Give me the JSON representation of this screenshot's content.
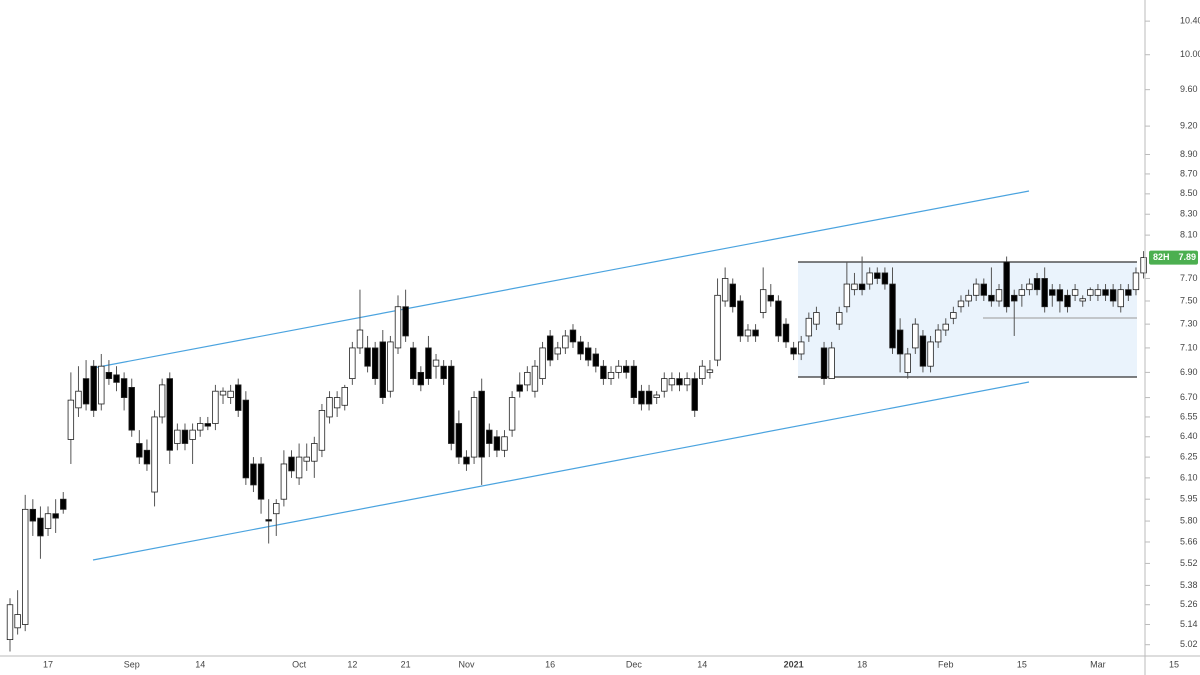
{
  "chart_data": {
    "type": "candlestick",
    "log_scale": true,
    "grid": false,
    "up_color": "#ffffff",
    "down_color": "#000000",
    "wick_color": "#555555",
    "categories": [
      null,
      null,
      null,
      null,
      null,
      "17",
      null,
      null,
      null,
      null,
      null,
      null,
      null,
      null,
      null,
      null,
      "Sep",
      null,
      null,
      null,
      null,
      null,
      null,
      null,
      null,
      "14",
      null,
      null,
      null,
      null,
      null,
      null,
      null,
      null,
      null,
      null,
      null,
      null,
      "Oct",
      null,
      null,
      null,
      null,
      null,
      null,
      "12",
      null,
      null,
      null,
      null,
      null,
      null,
      "21",
      null,
      null,
      null,
      null,
      null,
      null,
      null,
      "Nov",
      null,
      null,
      null,
      null,
      null,
      null,
      null,
      null,
      null,
      null,
      "16",
      null,
      null,
      null,
      null,
      null,
      null,
      null,
      null,
      null,
      null,
      "Dec",
      null,
      null,
      null,
      null,
      null,
      null,
      null,
      null,
      "14",
      null,
      null,
      null,
      null,
      null,
      null,
      null,
      null,
      null,
      null,
      null,
      "2021",
      null,
      null,
      null,
      null,
      null,
      null,
      null,
      null,
      "18",
      null,
      null,
      null,
      null,
      null,
      null,
      null,
      null,
      null,
      null,
      "Feb",
      null,
      null,
      null,
      null,
      null,
      null,
      null,
      null,
      null,
      "15",
      null,
      null,
      null,
      null,
      null,
      null,
      null,
      null,
      null,
      "Mar",
      null,
      null,
      null,
      null,
      null,
      null,
      null,
      null,
      null,
      "15"
    ],
    "open": [
      5.05,
      5.12,
      5.14,
      5.88,
      5.82,
      5.75,
      5.85,
      5.95,
      6.38,
      6.62,
      6.85,
      6.95,
      6.65,
      6.9,
      6.88,
      6.85,
      6.78,
      6.35,
      6.3,
      6.0,
      6.55,
      6.85,
      6.35,
      6.45,
      6.38,
      6.45,
      6.5,
      6.5,
      6.72,
      6.7,
      6.8,
      6.68,
      6.2,
      6.2,
      5.81,
      5.85,
      5.95,
      6.25,
      6.1,
      6.22,
      6.22,
      6.3,
      6.55,
      6.62,
      6.64,
      6.85,
      7.1,
      7.1,
      7.1,
      7.15,
      6.75,
      7.1,
      7.45,
      7.1,
      6.9,
      7.1,
      6.95,
      6.95,
      6.95,
      6.5,
      6.25,
      6.25,
      6.75,
      6.45,
      6.4,
      6.3,
      6.45,
      6.8,
      6.8,
      6.75,
      6.85,
      7.2,
      7.05,
      7.1,
      7.25,
      7.15,
      7.1,
      7.05,
      6.95,
      6.85,
      6.9,
      6.95,
      6.95,
      6.75,
      6.75,
      6.7,
      6.75,
      6.8,
      6.85,
      6.8,
      6.85,
      6.85,
      6.9,
      7.0,
      7.5,
      7.65,
      7.5,
      7.2,
      7.25,
      7.4,
      7.55,
      7.5,
      7.3,
      7.1,
      7.05,
      7.2,
      7.3,
      7.1,
      6.85,
      7.3,
      7.45,
      7.6,
      7.65,
      7.65,
      7.75,
      7.75,
      7.65,
      7.25,
      6.9,
      7.1,
      7.2,
      6.95,
      7.15,
      7.25,
      7.35,
      7.45,
      7.5,
      7.55,
      7.65,
      7.55,
      7.5,
      7.85,
      7.55,
      7.55,
      7.6,
      7.7,
      7.7,
      7.6,
      7.6,
      7.55,
      7.55,
      7.5,
      7.55,
      7.55,
      7.6,
      7.6,
      7.45,
      7.6,
      7.6,
      7.75,
      null,
      null,
      null,
      null
    ],
    "high": [
      5.3,
      5.35,
      5.98,
      5.95,
      5.9,
      5.9,
      5.95,
      6.0,
      6.9,
      6.95,
      7.0,
      7.0,
      7.05,
      7.0,
      6.95,
      6.9,
      6.85,
      6.45,
      6.38,
      6.6,
      6.85,
      6.9,
      6.5,
      6.5,
      6.5,
      6.55,
      6.55,
      6.8,
      6.78,
      6.8,
      6.85,
      6.75,
      6.25,
      6.25,
      5.95,
      5.95,
      6.3,
      6.3,
      6.35,
      6.35,
      6.4,
      6.65,
      6.75,
      6.75,
      6.8,
      7.15,
      7.6,
      7.2,
      7.15,
      7.25,
      7.2,
      7.55,
      7.6,
      7.15,
      6.95,
      7.2,
      7.05,
      7.0,
      7.0,
      6.6,
      6.3,
      6.75,
      6.85,
      6.5,
      6.45,
      6.45,
      6.75,
      6.9,
      6.95,
      7.0,
      7.15,
      7.25,
      7.15,
      7.25,
      7.3,
      7.2,
      7.15,
      7.1,
      7.0,
      6.95,
      7.0,
      7.0,
      7.0,
      6.8,
      6.8,
      6.75,
      6.9,
      6.9,
      6.9,
      6.9,
      6.9,
      7.0,
      7.0,
      7.7,
      7.8,
      7.7,
      7.55,
      7.3,
      7.3,
      7.8,
      7.65,
      7.55,
      7.35,
      7.15,
      7.2,
      7.4,
      7.45,
      7.15,
      7.15,
      7.45,
      7.85,
      7.75,
      7.9,
      7.8,
      7.8,
      7.8,
      7.8,
      7.35,
      7.1,
      7.35,
      7.25,
      7.2,
      7.3,
      7.35,
      7.45,
      7.55,
      7.6,
      7.7,
      7.7,
      7.8,
      7.65,
      7.9,
      7.6,
      7.65,
      7.7,
      7.75,
      7.8,
      7.65,
      7.65,
      7.6,
      7.65,
      7.55,
      7.62,
      7.65,
      7.65,
      7.65,
      7.65,
      7.65,
      7.8,
      7.95,
      null,
      null,
      null,
      null
    ],
    "low": [
      4.98,
      5.08,
      5.1,
      5.7,
      5.55,
      5.7,
      5.72,
      5.85,
      6.2,
      6.55,
      6.6,
      6.55,
      6.6,
      6.8,
      6.75,
      6.6,
      6.4,
      6.2,
      6.15,
      5.9,
      6.5,
      6.2,
      6.3,
      6.3,
      6.2,
      6.4,
      6.45,
      6.45,
      6.65,
      6.65,
      6.55,
      6.05,
      6.0,
      5.85,
      5.65,
      5.7,
      5.9,
      6.1,
      6.05,
      6.15,
      6.1,
      6.25,
      6.5,
      6.55,
      6.6,
      6.8,
      7.05,
      6.9,
      6.8,
      6.65,
      6.7,
      7.05,
      7.15,
      6.8,
      6.75,
      6.8,
      6.85,
      6.8,
      6.3,
      6.2,
      6.15,
      6.2,
      6.05,
      6.25,
      6.25,
      6.25,
      6.4,
      6.7,
      6.75,
      6.7,
      6.8,
      6.95,
      7.0,
      7.05,
      7.1,
      7.0,
      6.95,
      6.9,
      6.8,
      6.8,
      6.85,
      6.85,
      6.65,
      6.6,
      6.6,
      6.65,
      6.7,
      6.75,
      6.75,
      6.75,
      6.55,
      6.8,
      6.85,
      6.95,
      7.45,
      7.4,
      7.15,
      7.15,
      7.15,
      7.35,
      7.45,
      7.15,
      7.1,
      7.0,
      7.0,
      7.15,
      7.25,
      6.8,
      6.85,
      7.25,
      7.4,
      7.55,
      7.55,
      7.6,
      7.65,
      7.6,
      7.05,
      6.9,
      6.85,
      7.05,
      6.9,
      6.9,
      7.1,
      7.2,
      7.3,
      7.4,
      7.45,
      7.5,
      7.5,
      7.45,
      7.45,
      7.4,
      7.2,
      7.45,
      7.55,
      7.55,
      7.4,
      7.45,
      7.4,
      7.4,
      7.5,
      7.45,
      7.5,
      7.5,
      7.5,
      7.45,
      7.4,
      7.5,
      7.55,
      7.7,
      null,
      null,
      null,
      null
    ],
    "close": [
      5.26,
      5.2,
      5.88,
      5.8,
      5.7,
      5.85,
      5.82,
      5.88,
      6.68,
      6.75,
      6.65,
      6.6,
      6.95,
      6.85,
      6.82,
      6.7,
      6.45,
      6.25,
      6.2,
      6.55,
      6.8,
      6.3,
      6.45,
      6.35,
      6.45,
      6.5,
      6.48,
      6.75,
      6.75,
      6.75,
      6.6,
      6.1,
      6.05,
      5.95,
      5.8,
      5.92,
      6.2,
      6.15,
      6.25,
      6.25,
      6.35,
      6.6,
      6.7,
      6.7,
      6.78,
      7.1,
      7.25,
      6.95,
      6.85,
      6.7,
      7.15,
      7.45,
      7.2,
      6.85,
      6.8,
      6.85,
      7.0,
      6.85,
      6.35,
      6.25,
      6.2,
      6.7,
      6.25,
      6.35,
      6.3,
      6.4,
      6.7,
      6.75,
      6.9,
      6.95,
      7.1,
      7.0,
      7.1,
      7.2,
      7.15,
      7.05,
      7.0,
      6.95,
      6.85,
      6.9,
      6.95,
      6.9,
      6.7,
      6.65,
      6.65,
      6.72,
      6.85,
      6.85,
      6.8,
      6.85,
      6.6,
      6.95,
      6.92,
      7.55,
      7.7,
      7.45,
      7.2,
      7.25,
      7.2,
      7.6,
      7.5,
      7.2,
      7.15,
      7.05,
      7.15,
      7.35,
      7.4,
      6.85,
      7.1,
      7.4,
      7.65,
      7.65,
      7.6,
      7.75,
      7.7,
      7.65,
      7.1,
      7.05,
      7.05,
      7.3,
      6.95,
      7.15,
      7.25,
      7.3,
      7.4,
      7.5,
      7.55,
      7.65,
      7.55,
      7.5,
      7.6,
      7.45,
      7.5,
      7.6,
      7.65,
      7.6,
      7.45,
      7.55,
      7.5,
      7.45,
      7.6,
      7.52,
      7.6,
      7.6,
      7.55,
      7.5,
      7.6,
      7.55,
      7.75,
      7.89,
      null,
      null,
      null,
      null
    ],
    "ylim": [
      4.96,
      10.66
    ],
    "yticks": [
      5.02,
      5.14,
      5.26,
      5.38,
      5.52,
      5.66,
      {
        "value": 5.8,
        "label": "5.80"
      },
      5.95,
      {
        "value": 6.1,
        "label": "6.10"
      },
      6.25,
      {
        "value": 6.4,
        "label": "6.40"
      },
      6.55,
      {
        "value": 6.7,
        "label": "6.70"
      },
      {
        "value": 6.9,
        "label": "6.90"
      },
      {
        "value": 7.1,
        "label": "7.10"
      },
      {
        "value": 7.3,
        "label": "7.30"
      },
      {
        "value": 7.5,
        "label": "7.50"
      },
      {
        "value": 7.7,
        "label": "7.70"
      },
      {
        "value": 8.1,
        "label": "8.10"
      },
      {
        "value": 8.3,
        "label": "8.30"
      },
      {
        "value": 8.5,
        "label": "8.50"
      },
      {
        "value": 8.7,
        "label": "8.70"
      },
      {
        "value": 8.9,
        "label": "8.90"
      },
      {
        "value": 9.2,
        "label": "9.20"
      },
      {
        "value": 9.6,
        "label": "9.60"
      },
      {
        "value": 10,
        "label": "10.00"
      },
      {
        "value": 10.4,
        "label": "10.40"
      }
    ],
    "last_price": {
      "symbol": "82H",
      "value": 7.89,
      "color": "#4caf50"
    }
  }
}
